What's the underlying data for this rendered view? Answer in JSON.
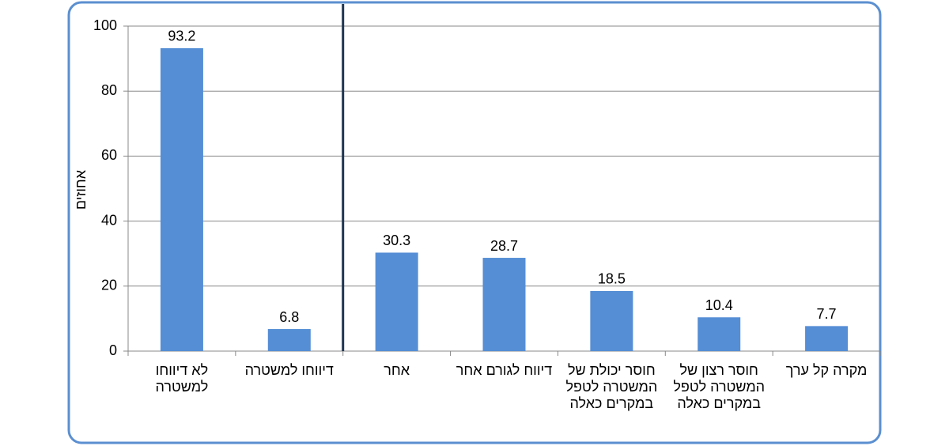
{
  "chart_data": {
    "type": "bar",
    "y_label": "אחוזים",
    "categories": [
      "לא דיווחו למשטרה",
      "דיווחו למשטרה",
      "אחר",
      "דיווח לגורם אחר",
      "חוסר יכולת של המשטרה לטפל במקרים כאלה",
      "חוסר רצון של המשטרה לטפל במקרים כאלה",
      "מקרה קל ערך"
    ],
    "values": [
      93.2,
      6.8,
      30.3,
      28.7,
      18.5,
      10.4,
      7.7
    ],
    "color": "#558ed5",
    "ylim": [
      0,
      100
    ],
    "yticks": [
      0,
      20,
      40,
      60,
      80,
      100
    ],
    "grid": true
  }
}
